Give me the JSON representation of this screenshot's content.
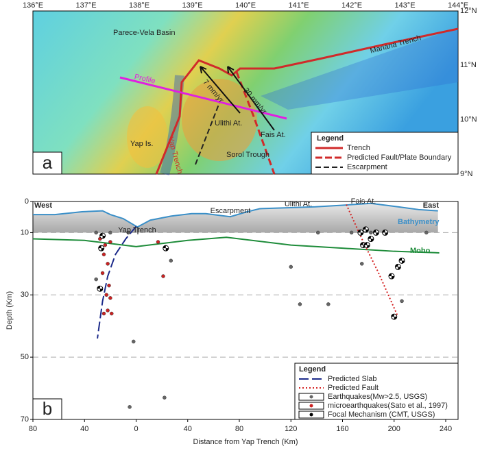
{
  "map": {
    "panel_label": "a",
    "lon_labels": [
      "136°E",
      "137°E",
      "138°E",
      "139°E",
      "140°E",
      "141°E",
      "142°E",
      "143°E",
      "144°E"
    ],
    "lat_labels": [
      "12°N",
      "11°N",
      "10°N",
      "9°N"
    ],
    "labels": {
      "basin": "Parece-Vela Basin",
      "mariana": "Mariana Trench",
      "profile": "Profile",
      "v7": "7 mm/yr",
      "v30": "30 mm/yr",
      "ulithi": "Ulithi At.",
      "fais": "Fais At.",
      "yap_is": "Yap Is.",
      "yap_trench": "Yap Trench",
      "sorol": "Sorol Trough"
    },
    "legend": {
      "title": "Legend",
      "items": [
        "Trench",
        "Predicted Fault/Plate Boundary",
        "Escarpment"
      ]
    }
  },
  "chart_data": {
    "type": "scatter",
    "panel_label": "b",
    "xlabel": "Distance from  Yap Trench (Km)",
    "ylabel": "Depth (Km)",
    "xlim": [
      -80,
      240
    ],
    "xticks": [
      {
        "value": -80,
        "label": "80"
      },
      {
        "value": -40,
        "label": "40"
      },
      0,
      40,
      80,
      120,
      160,
      200,
      240
    ],
    "ylim": [
      0,
      70
    ],
    "yticks": [
      0,
      10,
      30,
      50,
      70
    ],
    "y_inverted": true,
    "grid": true,
    "annotations": {
      "west": "West",
      "east": "East",
      "yap_trench": "Yap Trench",
      "escarpment": "Escarpment",
      "ulithi": "Ulithi At.",
      "fais": "Fais At."
    },
    "lines": [
      {
        "name": "Bathymetry",
        "color": "#3a8fc8",
        "x": [
          -80,
          -63,
          -42,
          -26,
          -20,
          -10,
          1,
          11,
          27,
          43,
          54,
          73,
          86,
          96,
          118,
          139,
          160,
          182,
          203,
          219,
          234
        ],
        "y": [
          4.2,
          4.2,
          3.3,
          3,
          4.2,
          5.5,
          8.2,
          6,
          4.7,
          3.9,
          3.9,
          4.9,
          3.3,
          2.3,
          2,
          1.7,
          1.2,
          0.6,
          1.7,
          2.6,
          3
        ]
      },
      {
        "name": "Moho",
        "color": "#1e8c3a",
        "x": [
          -80,
          -40,
          0,
          40,
          70,
          120,
          160,
          200,
          235
        ],
        "y": [
          12,
          12.5,
          14.5,
          12.5,
          11.5,
          14,
          15,
          16,
          16.5
        ]
      },
      {
        "name": "Predicted Slab",
        "color": "#1c2a8a",
        "x": [
          0,
          -8,
          -16,
          -22,
          -26,
          -28,
          -30
        ],
        "y": [
          8,
          12,
          17,
          24,
          32,
          38,
          44
        ]
      },
      {
        "name": "Predicted Fault",
        "color": "#d42020",
        "x": [
          163,
          175,
          188,
          203
        ],
        "y": [
          1,
          12,
          23,
          37
        ]
      }
    ],
    "series": [
      {
        "name": "Earthquakes(Mw>2.5, USGS)",
        "color": "#666666",
        "x": [
          -31,
          -20,
          -6,
          -2,
          -31,
          27,
          120,
          141,
          127,
          149,
          167,
          175,
          206,
          225,
          22,
          -5,
          182
        ],
        "y": [
          10,
          10,
          10,
          45,
          25,
          19,
          21,
          10,
          33,
          33,
          10,
          20,
          32,
          10,
          63,
          66,
          10
        ]
      },
      {
        "name": "microearthquakes(Sato et al., 1997)",
        "color": "#cc2222",
        "x": [
          -28,
          -24,
          -20,
          -25,
          -22,
          -26,
          -21,
          -23,
          -20,
          -22,
          -19,
          -25,
          17,
          21
        ],
        "y": [
          12,
          14,
          13,
          17,
          20,
          23,
          27,
          30,
          31,
          35,
          36,
          36,
          13,
          24
        ]
      },
      {
        "name": "Focal Mechanism (CMT, USGS)",
        "color": "#000000",
        "x": [
          -26,
          -27,
          -28,
          23,
          174,
          178,
          182,
          176,
          179,
          186,
          193,
          198,
          203,
          206,
          200
        ],
        "y": [
          11,
          15,
          28,
          15,
          10,
          9,
          12,
          14,
          14,
          10,
          10,
          24,
          21,
          19,
          37
        ]
      }
    ],
    "legend_title": "Legend"
  }
}
